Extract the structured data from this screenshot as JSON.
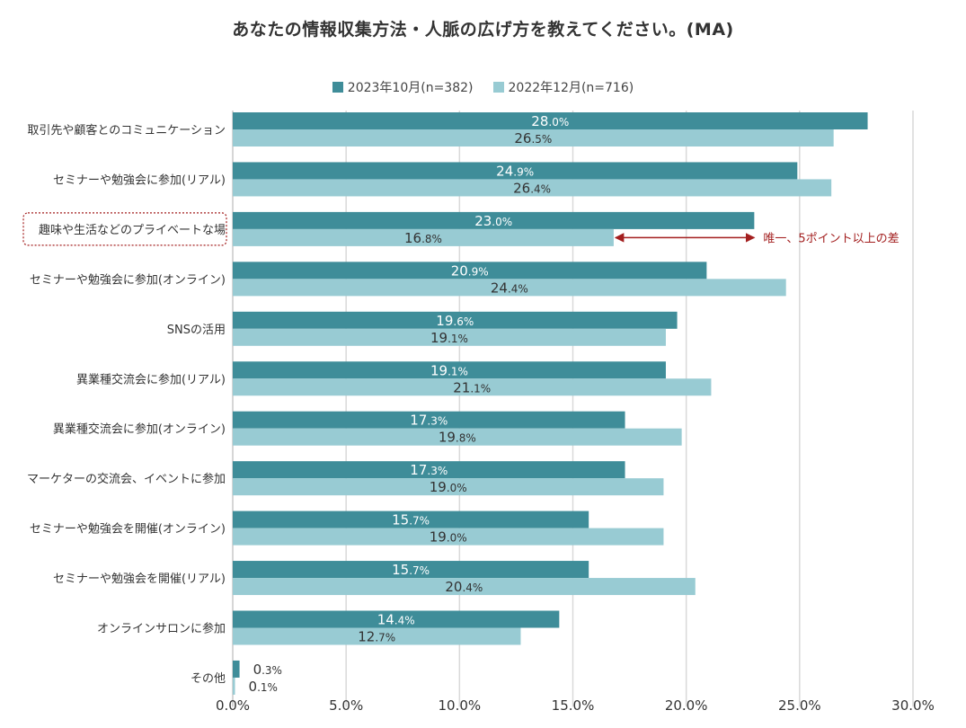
{
  "chart_data": {
    "type": "bar",
    "orientation": "horizontal",
    "title": "あなたの情報収集方法・人脈の広げ方を教えてください。(MA)",
    "categories": [
      "取引先や顧客とのコミュニケーション",
      "セミナーや勉強会に参加(リアル)",
      "趣味や生活などのプライベートな場",
      "セミナーや勉強会に参加(オンライン)",
      "SNSの活用",
      "異業種交流会に参加(リアル)",
      "異業種交流会に参加(オンライン)",
      "マーケターの交流会、イベントに参加",
      "セミナーや勉強会を開催(オンライン)",
      "セミナーや勉強会を開催(リアル)",
      "オンラインサロンに参加",
      "その他"
    ],
    "series": [
      {
        "name": "2023年10月(n=382)",
        "color": "#3f8d99",
        "values": [
          28.0,
          24.9,
          23.0,
          20.9,
          19.6,
          19.1,
          17.3,
          17.3,
          15.7,
          15.7,
          14.4,
          0.3
        ]
      },
      {
        "name": "2022年12月(n=716)",
        "color": "#98cbd3",
        "values": [
          26.5,
          26.4,
          16.8,
          24.4,
          19.1,
          21.1,
          19.8,
          19.0,
          19.0,
          20.4,
          12.7,
          0.1
        ]
      }
    ],
    "xlim": [
      0,
      30
    ],
    "xticks": [
      "0.0%",
      "5.0%",
      "10.0%",
      "15.0%",
      "20.0%",
      "25.0%",
      "30.0%"
    ],
    "highlight_category": "趣味や生活などのプライベートな場",
    "annotation": "唯一、5ポイント以上の差",
    "annotation_color": "#a31f1f"
  }
}
